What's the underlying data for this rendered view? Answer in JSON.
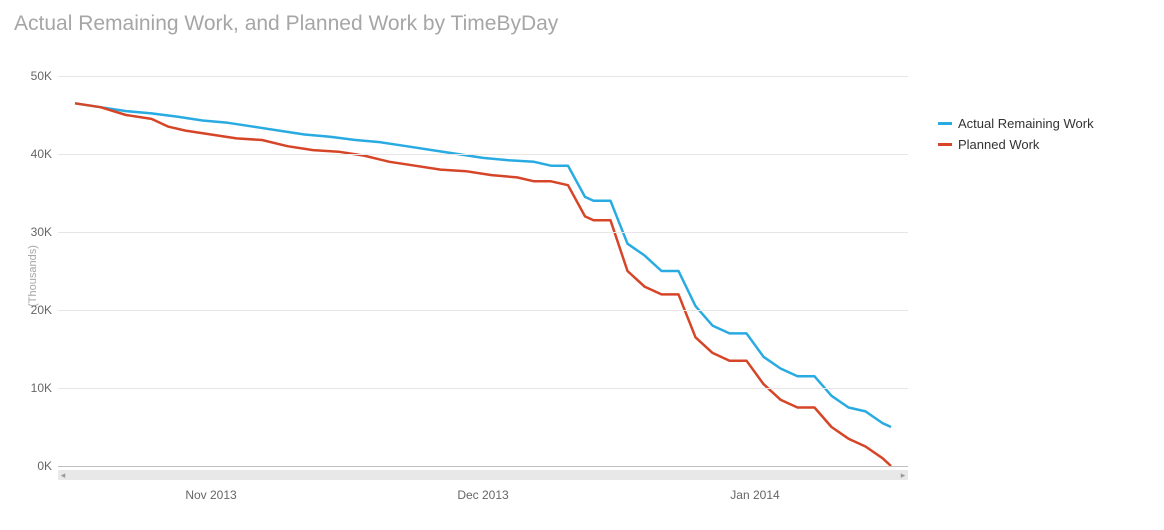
{
  "chart": {
    "type": "line",
    "title": "Actual Remaining Work, and Planned Work by TimeByDay",
    "title_color": "#a6a6a6",
    "title_fontsize": 21,
    "background_color": "#ffffff",
    "grid_color": "#e6e6e6",
    "axis_baseline_color": "#bfbfbf",
    "line_width": 2.5,
    "y_axis": {
      "title": "(Thousands)",
      "title_color": "#a6a6a6",
      "min": 0,
      "max": 50,
      "tick_step": 10,
      "ticks": [
        {
          "value": 0,
          "label": "0K"
        },
        {
          "value": 10,
          "label": "10K"
        },
        {
          "value": 20,
          "label": "20K"
        },
        {
          "value": 30,
          "label": "30K"
        },
        {
          "value": 40,
          "label": "40K"
        },
        {
          "value": 50,
          "label": "50K"
        }
      ],
      "tick_label_color": "#666666",
      "tick_label_fontsize": 12
    },
    "x_axis": {
      "min": 0,
      "max": 100,
      "ticks": [
        {
          "value": 18,
          "label": "Nov 2013"
        },
        {
          "value": 50,
          "label": "Dec 2013"
        },
        {
          "value": 82,
          "label": "Jan 2014"
        }
      ],
      "tick_label_color": "#666666",
      "tick_label_fontsize": 12,
      "scrollbar_track_color": "#e8e8e8"
    },
    "series": [
      {
        "name": "Actual Remaining Work",
        "color": "#29abe2",
        "data": [
          {
            "x": 2,
            "y": 46.5
          },
          {
            "x": 5,
            "y": 46.0
          },
          {
            "x": 8,
            "y": 45.5
          },
          {
            "x": 11,
            "y": 45.2
          },
          {
            "x": 14,
            "y": 44.8
          },
          {
            "x": 17,
            "y": 44.3
          },
          {
            "x": 20,
            "y": 44.0
          },
          {
            "x": 23,
            "y": 43.5
          },
          {
            "x": 26,
            "y": 43.0
          },
          {
            "x": 29,
            "y": 42.5
          },
          {
            "x": 32,
            "y": 42.2
          },
          {
            "x": 35,
            "y": 41.8
          },
          {
            "x": 38,
            "y": 41.5
          },
          {
            "x": 41,
            "y": 41.0
          },
          {
            "x": 44,
            "y": 40.5
          },
          {
            "x": 47,
            "y": 40.0
          },
          {
            "x": 50,
            "y": 39.5
          },
          {
            "x": 53,
            "y": 39.2
          },
          {
            "x": 56,
            "y": 39.0
          },
          {
            "x": 58,
            "y": 38.5
          },
          {
            "x": 60,
            "y": 38.5
          },
          {
            "x": 62,
            "y": 34.5
          },
          {
            "x": 63,
            "y": 34.0
          },
          {
            "x": 65,
            "y": 34.0
          },
          {
            "x": 67,
            "y": 28.5
          },
          {
            "x": 69,
            "y": 27.0
          },
          {
            "x": 71,
            "y": 25.0
          },
          {
            "x": 73,
            "y": 25.0
          },
          {
            "x": 75,
            "y": 20.5
          },
          {
            "x": 77,
            "y": 18.0
          },
          {
            "x": 79,
            "y": 17.0
          },
          {
            "x": 81,
            "y": 17.0
          },
          {
            "x": 83,
            "y": 14.0
          },
          {
            "x": 85,
            "y": 12.5
          },
          {
            "x": 87,
            "y": 11.5
          },
          {
            "x": 89,
            "y": 11.5
          },
          {
            "x": 91,
            "y": 9.0
          },
          {
            "x": 93,
            "y": 7.5
          },
          {
            "x": 95,
            "y": 7.0
          },
          {
            "x": 97,
            "y": 5.5
          },
          {
            "x": 98,
            "y": 5.0
          }
        ]
      },
      {
        "name": "Planned Work",
        "color": "#d64527",
        "data": [
          {
            "x": 2,
            "y": 46.5
          },
          {
            "x": 5,
            "y": 46.0
          },
          {
            "x": 8,
            "y": 45.0
          },
          {
            "x": 11,
            "y": 44.5
          },
          {
            "x": 13,
            "y": 43.5
          },
          {
            "x": 15,
            "y": 43.0
          },
          {
            "x": 18,
            "y": 42.5
          },
          {
            "x": 21,
            "y": 42.0
          },
          {
            "x": 24,
            "y": 41.8
          },
          {
            "x": 27,
            "y": 41.0
          },
          {
            "x": 30,
            "y": 40.5
          },
          {
            "x": 33,
            "y": 40.3
          },
          {
            "x": 36,
            "y": 39.8
          },
          {
            "x": 39,
            "y": 39.0
          },
          {
            "x": 42,
            "y": 38.5
          },
          {
            "x": 45,
            "y": 38.0
          },
          {
            "x": 48,
            "y": 37.8
          },
          {
            "x": 51,
            "y": 37.3
          },
          {
            "x": 54,
            "y": 37.0
          },
          {
            "x": 56,
            "y": 36.5
          },
          {
            "x": 58,
            "y": 36.5
          },
          {
            "x": 60,
            "y": 36.0
          },
          {
            "x": 62,
            "y": 32.0
          },
          {
            "x": 63,
            "y": 31.5
          },
          {
            "x": 65,
            "y": 31.5
          },
          {
            "x": 67,
            "y": 25.0
          },
          {
            "x": 69,
            "y": 23.0
          },
          {
            "x": 71,
            "y": 22.0
          },
          {
            "x": 73,
            "y": 22.0
          },
          {
            "x": 75,
            "y": 16.5
          },
          {
            "x": 77,
            "y": 14.5
          },
          {
            "x": 79,
            "y": 13.5
          },
          {
            "x": 81,
            "y": 13.5
          },
          {
            "x": 83,
            "y": 10.5
          },
          {
            "x": 85,
            "y": 8.5
          },
          {
            "x": 87,
            "y": 7.5
          },
          {
            "x": 89,
            "y": 7.5
          },
          {
            "x": 91,
            "y": 5.0
          },
          {
            "x": 93,
            "y": 3.5
          },
          {
            "x": 95,
            "y": 2.5
          },
          {
            "x": 97,
            "y": 1.0
          },
          {
            "x": 98,
            "y": 0.0
          }
        ]
      }
    ],
    "legend": {
      "position": "right",
      "fontsize": 13,
      "text_color": "#333333"
    }
  }
}
